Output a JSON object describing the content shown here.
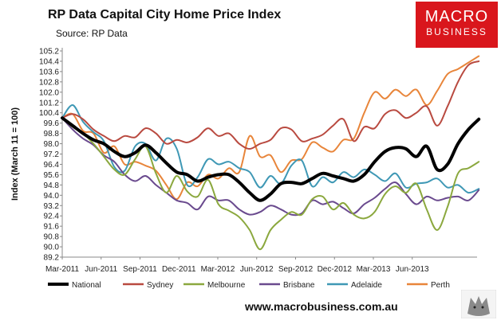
{
  "header": {
    "title": "RP Data Capital City Home Price Index",
    "subtitle": "Source: RP Data"
  },
  "logo": {
    "line1": "MACRO",
    "line2": "BUSINESS",
    "color": "#d9161c"
  },
  "footer": {
    "url": "www.macrobusiness.com.au"
  },
  "chart_data": {
    "type": "line",
    "title": "RP Data Capital City Home Price Index",
    "ylabel": "Index (March 11 = 100)",
    "xlabel": "",
    "ylim": [
      89.2,
      105.2
    ],
    "yticks": [
      "89.2",
      "90.0",
      "90.8",
      "91.6",
      "92.4",
      "93.2",
      "94.0",
      "94.8",
      "95.6",
      "96.4",
      "97.2",
      "98.0",
      "98.8",
      "99.6",
      "100.4",
      "101.2",
      "102.0",
      "102.8",
      "103.6",
      "104.4",
      "105.2"
    ],
    "xticks": [
      "Mar-2011",
      "Jun-2011",
      "Sep-2011",
      "Dec-2011",
      "Mar-2012",
      "Jun-2012",
      "Sep-2012",
      "Dec-2012",
      "Mar-2013",
      "Jun-2013"
    ],
    "x_range_months": [
      0,
      32
    ],
    "legend_position": "bottom",
    "grid": false,
    "series": [
      {
        "name": "National",
        "color": "#000000",
        "width": 4,
        "values": [
          100.0,
          99.4,
          98.8,
          98.3,
          98.0,
          97.4,
          97.0,
          97.3,
          97.9,
          97.3,
          96.5,
          95.8,
          95.6,
          95.1,
          95.4,
          95.6,
          95.6,
          95.0,
          94.2,
          93.6,
          94.1,
          94.9,
          95.0,
          94.9,
          95.3,
          95.7,
          95.5,
          95.3,
          95.1,
          95.6,
          96.6,
          97.4,
          97.7,
          97.6,
          97.0,
          97.8,
          96.0,
          96.4,
          98.0,
          99.1,
          99.9
        ]
      },
      {
        "name": "Sydney",
        "color": "#b94a40",
        "width": 2,
        "values": [
          100.0,
          100.3,
          99.9,
          99.1,
          98.6,
          98.2,
          98.6,
          98.5,
          99.2,
          98.8,
          98.0,
          98.3,
          98.1,
          98.5,
          99.2,
          98.6,
          98.8,
          98.0,
          97.6,
          98.0,
          98.3,
          99.2,
          99.1,
          98.2,
          98.4,
          98.7,
          99.4,
          99.9,
          98.2,
          99.3,
          99.2,
          100.3,
          100.6,
          100.0,
          100.4,
          100.9,
          99.4,
          100.9,
          102.8,
          104.1,
          104.4
        ]
      },
      {
        "name": "Melbourne",
        "color": "#8ba83e",
        "width": 2,
        "values": [
          100.0,
          99.3,
          98.8,
          98.0,
          97.0,
          96.0,
          95.6,
          96.8,
          97.8,
          95.7,
          94.2,
          95.5,
          94.3,
          93.9,
          95.2,
          93.3,
          92.8,
          92.3,
          91.3,
          89.8,
          91.3,
          92.1,
          92.7,
          92.5,
          93.7,
          93.9,
          92.9,
          93.4,
          92.5,
          92.2,
          92.7,
          94.1,
          94.7,
          94.2,
          94.9,
          92.9,
          91.3,
          93.1,
          95.7,
          96.1,
          96.6
        ]
      },
      {
        "name": "Brisbane",
        "color": "#6a4a8e",
        "width": 2,
        "values": [
          100.0,
          99.1,
          98.4,
          97.9,
          97.1,
          96.6,
          95.6,
          95.1,
          95.5,
          94.8,
          94.2,
          93.6,
          93.4,
          92.9,
          93.9,
          93.6,
          93.6,
          92.9,
          92.5,
          92.7,
          93.2,
          92.9,
          92.5,
          92.6,
          93.6,
          93.3,
          93.5,
          93.0,
          92.6,
          93.3,
          93.8,
          94.5,
          95.0,
          94.1,
          93.3,
          93.9,
          93.6,
          93.8,
          93.9,
          93.6,
          94.4
        ]
      },
      {
        "name": "Adelaide",
        "color": "#3f98b5",
        "width": 2,
        "values": [
          100.0,
          101.0,
          99.7,
          98.9,
          98.2,
          96.2,
          95.9,
          97.8,
          98.0,
          96.7,
          98.4,
          97.6,
          94.8,
          95.4,
          96.8,
          96.4,
          96.6,
          96.1,
          95.8,
          94.6,
          95.5,
          94.9,
          96.3,
          96.7,
          94.7,
          95.4,
          95.0,
          95.8,
          95.4,
          96.0,
          95.6,
          95.1,
          95.7,
          94.6,
          94.9,
          95.0,
          95.3,
          94.6,
          94.8,
          94.2,
          94.5
        ]
      },
      {
        "name": "Perth",
        "color": "#e8853a",
        "width": 2,
        "values": [
          100.0,
          100.3,
          99.0,
          98.8,
          97.3,
          97.8,
          96.4,
          96.6,
          96.3,
          95.9,
          94.8,
          93.7,
          95.0,
          94.7,
          95.6,
          95.3,
          96.1,
          95.8,
          98.6,
          97.0,
          97.1,
          95.8,
          96.7,
          96.8,
          98.1,
          97.7,
          97.4,
          98.3,
          98.4,
          100.4,
          102.0,
          101.5,
          102.2,
          101.7,
          102.2,
          101.0,
          102.1,
          103.4,
          103.8,
          104.3,
          104.8
        ]
      }
    ]
  }
}
